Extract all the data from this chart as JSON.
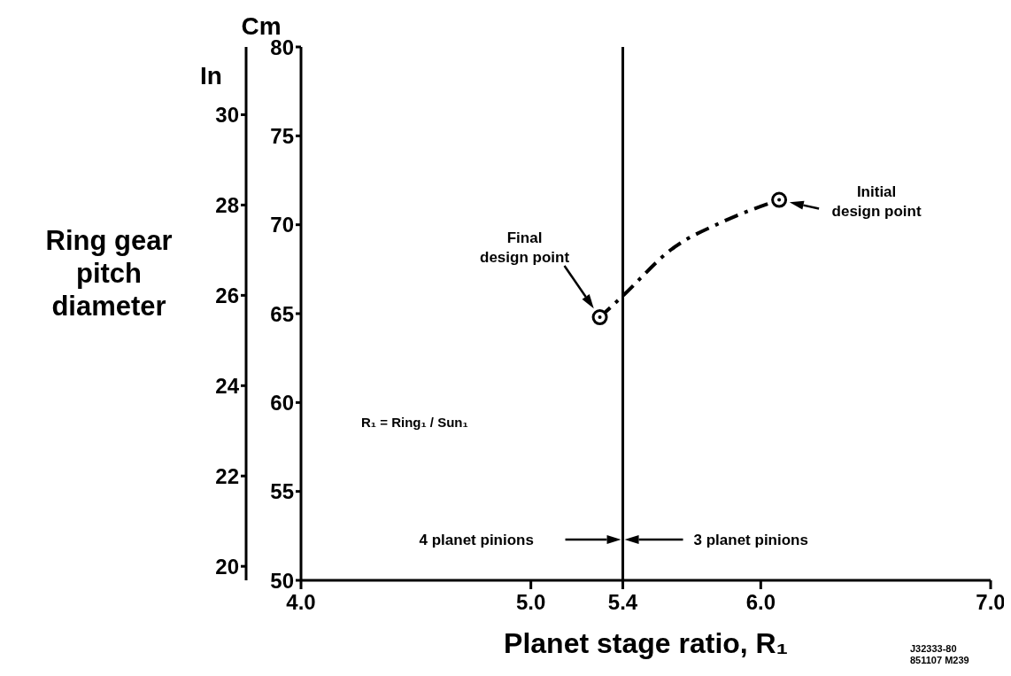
{
  "chart_data": {
    "type": "line",
    "xlabel": "Planet stage ratio, R₁",
    "ylabel": "Cm",
    "y2label": "In",
    "xlim": [
      4,
      7
    ],
    "xticks": [
      {
        "value": 4,
        "label": "4.0"
      },
      {
        "value": 5,
        "label": "5.0"
      },
      5.4,
      {
        "value": 6,
        "label": "6.0"
      },
      {
        "value": 7,
        "label": "7.0"
      }
    ],
    "ylim": [
      50,
      80
    ],
    "yticks": [
      50,
      55,
      60,
      65,
      70,
      75,
      80
    ],
    "y2lim": [
      19.69,
      31.5
    ],
    "y2ticks": [
      20,
      22,
      24,
      26,
      28,
      30
    ],
    "grid": false,
    "series": [
      {
        "color": "#000000",
        "x": [
          5.3,
          5.4,
          5.61,
          5.84,
          6.08
        ],
        "values": [
          64.8,
          66.0,
          68.6,
          70.2,
          71.4
        ],
        "line_style": "dashed",
        "marker": "none"
      },
      {
        "type": "scatter",
        "color": "#000000",
        "x": [
          5.3,
          6.08
        ],
        "values": [
          64.8,
          71.4
        ],
        "marker": "circle"
      }
    ],
    "ref_lines": [
      {
        "axis": "x",
        "value": 5.4,
        "color": "#000000"
      }
    ],
    "annotations": [
      "Ring gear pitch diameter",
      "Final design point",
      "Initial design point",
      "R₁ = Ring₁ / Sun₁",
      "4 planet pinions",
      "3 planet pinions",
      "J32333-80 851107 M239"
    ]
  }
}
